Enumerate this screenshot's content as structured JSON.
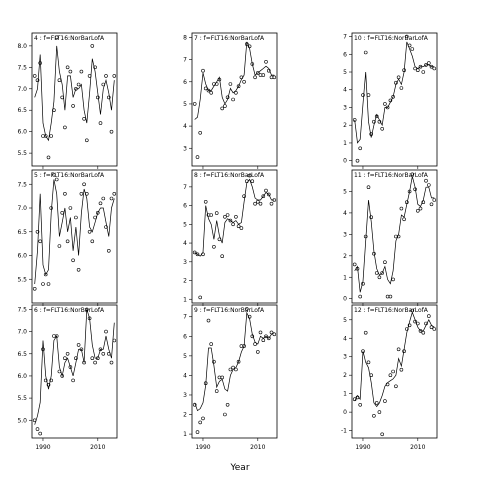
{
  "chart_data": [
    {
      "type": "scatter",
      "strip_label": "4 : f=FLT16:NorBarLofA",
      "x": [
        1987,
        1988,
        1989,
        1990,
        1991,
        1992,
        1993,
        1994,
        1995,
        1996,
        1997,
        1998,
        1999,
        2000,
        2001,
        2002,
        2003,
        2004,
        2005,
        2006,
        2007,
        2008,
        2009,
        2010,
        2011,
        2012,
        2013,
        2014,
        2015,
        2016
      ],
      "points": [
        7.3,
        7.2,
        7.6,
        5.9,
        5.9,
        5.4,
        5.9,
        6.5,
        8.2,
        7.2,
        6.8,
        6.1,
        7.5,
        7.4,
        6.6,
        7.0,
        7.1,
        7.4,
        6.3,
        5.8,
        7.3,
        8.0,
        7.5,
        6.8,
        6.2,
        7.1,
        7.3,
        6.8,
        6.0,
        7.3
      ],
      "smooth": [
        6.8,
        7.0,
        7.8,
        6.2,
        5.9,
        5.8,
        6.2,
        6.7,
        8.0,
        7.4,
        7.1,
        6.5,
        7.3,
        7.3,
        6.8,
        7.0,
        7.0,
        7.1,
        6.5,
        6.2,
        6.9,
        7.7,
        7.4,
        6.9,
        6.4,
        7.0,
        7.2,
        6.9,
        6.5,
        7.2
      ],
      "ylim": [
        5.2,
        8.3
      ],
      "yticks": [
        5.5,
        6.0,
        6.5,
        7.0,
        7.5,
        8.0
      ],
      "ytick_labels": [
        "5.5",
        "6.0",
        "6.5",
        "7.0",
        "7.5",
        "8.0"
      ]
    },
    {
      "type": "scatter",
      "strip_label": "7 : f=FLT16:NorBarLofA",
      "x": [
        1987,
        1988,
        1989,
        1990,
        1991,
        1992,
        1993,
        1994,
        1995,
        1996,
        1997,
        1998,
        1999,
        2000,
        2001,
        2002,
        2003,
        2004,
        2005,
        2006,
        2007,
        2008,
        2009,
        2010,
        2011,
        2012,
        2013,
        2014,
        2015,
        2016
      ],
      "points": [
        5.0,
        2.6,
        3.7,
        6.5,
        5.7,
        5.6,
        5.5,
        5.9,
        5.9,
        6.1,
        4.8,
        4.9,
        5.3,
        5.9,
        5.2,
        5.5,
        5.8,
        6.2,
        6.0,
        7.7,
        7.6,
        6.8,
        6.2,
        6.4,
        6.3,
        6.3,
        6.9,
        6.5,
        6.2,
        6.2
      ],
      "smooth": [
        4.3,
        4.4,
        5.2,
        6.4,
        5.9,
        5.6,
        5.6,
        5.8,
        6.0,
        6.2,
        5.3,
        5.0,
        5.2,
        5.7,
        5.5,
        5.6,
        5.8,
        6.1,
        6.3,
        7.8,
        7.5,
        6.8,
        6.3,
        6.4,
        6.5,
        6.6,
        6.7,
        6.6,
        6.3,
        6.3
      ],
      "ylim": [
        2.2,
        8.2
      ],
      "yticks": [
        3,
        4,
        5,
        6,
        7,
        8
      ],
      "ytick_labels": [
        "3",
        "4",
        "5",
        "6",
        "7",
        "8"
      ]
    },
    {
      "type": "scatter",
      "strip_label": "10 : f=FLT16:NorBarLofA",
      "x": [
        1987,
        1988,
        1989,
        1990,
        1991,
        1992,
        1993,
        1994,
        1995,
        1996,
        1997,
        1998,
        1999,
        2000,
        2001,
        2002,
        2003,
        2004,
        2005,
        2006,
        2007,
        2008,
        2009,
        2010,
        2011,
        2012,
        2013,
        2014,
        2015,
        2016
      ],
      "points": [
        2.3,
        0.0,
        0.7,
        3.7,
        6.1,
        3.7,
        1.5,
        2.2,
        2.5,
        2.2,
        1.8,
        3.2,
        3.0,
        3.4,
        3.6,
        4.4,
        4.7,
        4.1,
        5.1,
        7.0,
        6.5,
        6.3,
        5.2,
        5.1,
        5.3,
        5.0,
        5.4,
        5.5,
        5.3,
        5.2
      ],
      "smooth": [
        2.3,
        1.0,
        1.2,
        3.2,
        5.0,
        2.2,
        1.3,
        2.0,
        2.6,
        2.3,
        2.0,
        3.0,
        3.0,
        3.3,
        3.6,
        4.3,
        4.6,
        4.3,
        5.0,
        6.7,
        6.3,
        5.9,
        5.3,
        5.2,
        5.3,
        5.3,
        5.4,
        5.4,
        5.3,
        5.3
      ],
      "ylim": [
        -0.3,
        7.2
      ],
      "yticks": [
        0,
        1,
        2,
        3,
        4,
        5,
        6,
        7
      ],
      "ytick_labels": [
        "0",
        "1",
        "2",
        "3",
        "4",
        "5",
        "6",
        "7"
      ]
    },
    {
      "type": "scatter",
      "strip_label": "5 : f=FLT16:NorBarLofA",
      "x": [
        1987,
        1988,
        1989,
        1990,
        1991,
        1992,
        1993,
        1994,
        1995,
        1996,
        1997,
        1998,
        1999,
        2000,
        2001,
        2002,
        2003,
        2004,
        2005,
        2006,
        2007,
        2008,
        2009,
        2010,
        2011,
        2012,
        2013,
        2014,
        2015,
        2016
      ],
      "points": [
        5.3,
        6.5,
        6.3,
        5.4,
        5.6,
        5.4,
        7.0,
        7.7,
        7.6,
        6.2,
        6.9,
        7.3,
        6.3,
        7.0,
        5.9,
        6.8,
        5.7,
        7.3,
        7.5,
        7.3,
        6.5,
        6.3,
        6.8,
        6.9,
        7.1,
        7.2,
        6.6,
        6.1,
        7.2,
        7.3
      ],
      "smooth": [
        5.4,
        6.1,
        7.3,
        5.8,
        5.6,
        5.7,
        6.9,
        7.6,
        7.3,
        6.4,
        6.7,
        7.0,
        6.5,
        6.8,
        6.1,
        6.6,
        6.0,
        6.9,
        7.4,
        7.2,
        6.6,
        6.5,
        6.7,
        6.9,
        7.0,
        7.0,
        6.7,
        6.4,
        7.0,
        7.2
      ],
      "ylim": [
        5.0,
        7.8
      ],
      "yticks": [
        5.5,
        6.0,
        6.5,
        7.0,
        7.5
      ],
      "ytick_labels": [
        "5.5",
        "6.0",
        "6.5",
        "7.0",
        "7.5"
      ]
    },
    {
      "type": "scatter",
      "strip_label": "8 : f=FLT16:NorBarLofA",
      "x": [
        1987,
        1988,
        1989,
        1990,
        1991,
        1992,
        1993,
        1994,
        1995,
        1996,
        1997,
        1998,
        1999,
        2000,
        2001,
        2002,
        2003,
        2004,
        2005,
        2006,
        2007,
        2008,
        2009,
        2010,
        2011,
        2012,
        2013,
        2014,
        2015,
        2016
      ],
      "points": [
        3.5,
        3.4,
        1.1,
        3.4,
        6.2,
        5.5,
        5.5,
        3.8,
        5.6,
        4.2,
        3.3,
        5.4,
        5.5,
        5.2,
        5.0,
        5.4,
        4.9,
        4.8,
        6.5,
        7.3,
        7.6,
        7.3,
        6.1,
        6.2,
        6.1,
        6.5,
        6.8,
        6.6,
        6.1,
        6.3
      ],
      "smooth": [
        3.5,
        3.4,
        3.3,
        3.5,
        6.0,
        5.3,
        5.0,
        4.2,
        5.2,
        4.4,
        4.0,
        5.1,
        5.3,
        5.2,
        5.1,
        5.2,
        5.0,
        5.1,
        6.2,
        7.2,
        7.4,
        7.0,
        6.4,
        6.3,
        6.3,
        6.5,
        6.7,
        6.6,
        6.3,
        6.3
      ],
      "ylim": [
        0.8,
        7.9
      ],
      "yticks": [
        1,
        2,
        3,
        4,
        5,
        6,
        7
      ],
      "ytick_labels": [
        "1",
        "2",
        "3",
        "4",
        "5",
        "6",
        "7"
      ]
    },
    {
      "type": "scatter",
      "strip_label": "11 : f=FLT16:NorBarLofA",
      "x": [
        1987,
        1988,
        1989,
        1990,
        1991,
        1992,
        1993,
        1994,
        1995,
        1996,
        1997,
        1998,
        1999,
        2000,
        2001,
        2002,
        2003,
        2004,
        2005,
        2006,
        2007,
        2008,
        2009,
        2010,
        2011,
        2012,
        2013,
        2014,
        2015,
        2016
      ],
      "points": [
        1.6,
        1.4,
        0.1,
        0.7,
        2.9,
        5.2,
        3.8,
        2.1,
        1.2,
        1.0,
        1.2,
        1.7,
        0.1,
        0.1,
        0.9,
        2.9,
        2.9,
        4.2,
        3.7,
        4.5,
        5.0,
        5.8,
        5.1,
        4.1,
        4.2,
        4.5,
        5.5,
        5.3,
        4.4,
        4.6
      ],
      "smooth": [
        1.3,
        1.5,
        0.3,
        0.8,
        2.7,
        4.6,
        3.6,
        2.2,
        1.4,
        1.1,
        1.2,
        1.5,
        0.9,
        0.7,
        1.3,
        2.7,
        3.0,
        3.9,
        3.8,
        4.4,
        5.0,
        5.7,
        5.2,
        4.4,
        4.3,
        4.6,
        5.2,
        5.2,
        4.7,
        4.7
      ],
      "ylim": [
        -0.2,
        6.0
      ],
      "yticks": [
        0,
        1,
        2,
        3,
        4,
        5
      ],
      "ytick_labels": [
        "0",
        "1",
        "2",
        "3",
        "4",
        "5"
      ]
    },
    {
      "type": "scatter",
      "strip_label": "6 : f=FLT16:NorBarLofA",
      "x": [
        1987,
        1988,
        1989,
        1990,
        1991,
        1992,
        1993,
        1994,
        1995,
        1996,
        1997,
        1998,
        1999,
        2000,
        2001,
        2002,
        2003,
        2004,
        2005,
        2006,
        2007,
        2008,
        2009,
        2010,
        2011,
        2012,
        2013,
        2014,
        2015,
        2016
      ],
      "points": [
        5.0,
        4.8,
        4.7,
        6.6,
        5.9,
        5.8,
        5.9,
        6.9,
        6.9,
        6.1,
        6.0,
        6.4,
        6.5,
        6.2,
        5.9,
        6.4,
        6.7,
        6.6,
        6.3,
        7.5,
        7.3,
        6.4,
        6.3,
        6.4,
        6.6,
        6.5,
        7.0,
        6.5,
        6.3,
        6.8
      ],
      "smooth": [
        4.9,
        5.1,
        5.4,
        6.8,
        6.0,
        5.7,
        6.0,
        6.8,
        6.9,
        6.2,
        6.0,
        6.3,
        6.4,
        6.2,
        6.0,
        6.3,
        6.6,
        6.6,
        6.3,
        7.5,
        7.3,
        6.7,
        6.4,
        6.4,
        6.6,
        6.6,
        6.9,
        6.6,
        6.4,
        7.2
      ],
      "ylim": [
        4.6,
        7.6
      ],
      "yticks": [
        5.0,
        5.5,
        6.0,
        6.5,
        7.0,
        7.5
      ],
      "ytick_labels": [
        "5.0",
        "5.5",
        "6.0",
        "6.5",
        "7.0",
        "7.5"
      ]
    },
    {
      "type": "scatter",
      "strip_label": "9 : f=FLT16:NorBarLofA",
      "x": [
        1987,
        1988,
        1989,
        1990,
        1991,
        1992,
        1993,
        1994,
        1995,
        1996,
        1997,
        1998,
        1999,
        2000,
        2001,
        2002,
        2003,
        2004,
        2005,
        2006,
        2007,
        2008,
        2009,
        2010,
        2011,
        2012,
        2013,
        2014,
        2015,
        2016
      ],
      "points": [
        2.5,
        1.1,
        1.6,
        1.8,
        3.6,
        6.8,
        5.6,
        4.7,
        3.2,
        3.9,
        3.9,
        2.0,
        2.5,
        4.3,
        4.4,
        4.3,
        4.7,
        5.5,
        5.5,
        7.4,
        7.0,
        6.0,
        5.6,
        5.2,
        6.2,
        5.8,
        6.0,
        5.9,
        6.2,
        6.1
      ],
      "smooth": [
        2.6,
        2.2,
        2.3,
        2.6,
        3.5,
        5.4,
        5.4,
        4.5,
        3.4,
        3.7,
        3.8,
        3.3,
        3.2,
        4.0,
        4.3,
        4.4,
        4.7,
        5.2,
        5.5,
        7.2,
        6.9,
        6.1,
        5.7,
        5.6,
        6.0,
        5.9,
        6.0,
        5.9,
        6.1,
        6.2
      ],
      "ylim": [
        0.8,
        7.6
      ],
      "yticks": [
        1,
        2,
        3,
        4,
        5,
        6,
        7
      ],
      "ytick_labels": [
        "1",
        "2",
        "3",
        "4",
        "5",
        "6",
        "7"
      ]
    },
    {
      "type": "scatter",
      "strip_label": "12 : f=FLT16:NorBarLofA",
      "x": [
        1987,
        1988,
        1989,
        1990,
        1991,
        1992,
        1993,
        1994,
        1995,
        1996,
        1997,
        1998,
        1999,
        2000,
        2001,
        2002,
        2003,
        2004,
        2005,
        2006,
        2007,
        2008,
        2009,
        2010,
        2011,
        2012,
        2013,
        2014,
        2015,
        2016
      ],
      "points": [
        0.7,
        0.8,
        0.4,
        3.3,
        4.3,
        2.7,
        2.0,
        -0.2,
        0.5,
        0.0,
        -1.2,
        0.6,
        1.5,
        2.0,
        2.2,
        1.4,
        3.4,
        2.3,
        3.3,
        4.5,
        4.7,
        5.5,
        4.9,
        4.8,
        4.4,
        4.3,
        4.8,
        5.2,
        4.6,
        4.5
      ],
      "smooth": [
        0.6,
        0.9,
        0.7,
        3.3,
        2.7,
        2.4,
        1.6,
        0.5,
        0.3,
        0.5,
        0.9,
        1.4,
        1.6,
        1.7,
        1.8,
        2.0,
        2.9,
        2.5,
        3.4,
        4.3,
        4.9,
        5.4,
        5.0,
        4.6,
        4.4,
        4.4,
        4.7,
        5.0,
        4.7,
        4.6
      ],
      "ylim": [
        -1.4,
        5.8
      ],
      "yticks": [
        -1,
        0,
        1,
        2,
        3,
        4,
        5
      ],
      "ytick_labels": [
        "-1",
        "0",
        "1",
        "2",
        "3",
        "4",
        "5"
      ]
    }
  ],
  "shared_xaxis": {
    "xlim": [
      1986,
      2017
    ],
    "xticks": [
      1990,
      2010
    ],
    "xtick_labels": [
      "1990",
      "2010"
    ],
    "xlabel": "Year"
  }
}
